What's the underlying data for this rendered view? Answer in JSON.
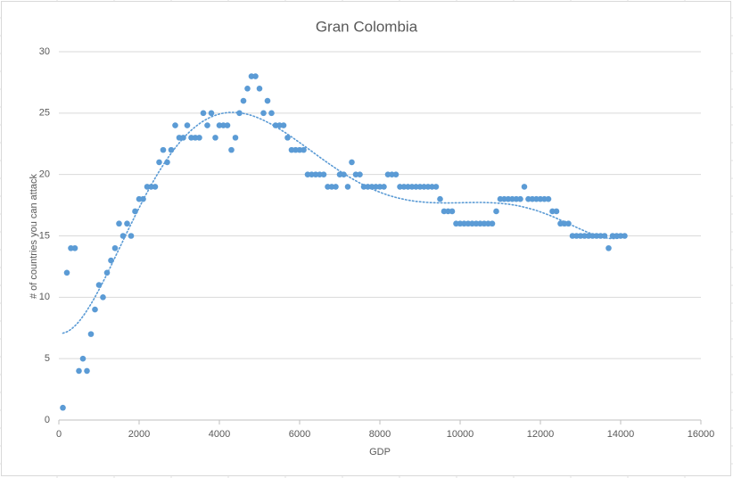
{
  "chart_data": {
    "type": "scatter",
    "title": "Gran Colombia",
    "x_label": "GDP",
    "y_label": "# of countries you can attack",
    "color": "#5b9bd5",
    "grid": true,
    "trendline": {
      "type": "polynomial",
      "order": 6,
      "style": "dotted"
    },
    "xlim": [
      0,
      16000
    ],
    "xticks": [
      0,
      2000,
      4000,
      6000,
      8000,
      10000,
      12000,
      14000,
      16000
    ],
    "ylim": [
      0,
      30
    ],
    "yticks": [
      0,
      5,
      10,
      15,
      20,
      25,
      30
    ],
    "series": [
      {
        "name": "Gran Colombia",
        "color": "#5b9bd5",
        "x": [
          100,
          200,
          300,
          400,
          500,
          600,
          700,
          800,
          900,
          1000,
          1100,
          1200,
          1300,
          1400,
          1500,
          1600,
          1700,
          1800,
          1900,
          2000,
          2100,
          2200,
          2300,
          2400,
          2500,
          2600,
          2700,
          2800,
          2900,
          3000,
          3100,
          3200,
          3300,
          3400,
          3500,
          3600,
          3700,
          3800,
          3900,
          4000,
          4100,
          4200,
          4300,
          4400,
          4500,
          4600,
          4700,
          4800,
          4900,
          5000,
          5100,
          5200,
          5300,
          5400,
          5500,
          5600,
          5700,
          5800,
          5900,
          6000,
          6100,
          6200,
          6300,
          6400,
          6500,
          6600,
          6700,
          6800,
          6900,
          7000,
          7100,
          7200,
          7300,
          7400,
          7500,
          7600,
          7700,
          7800,
          7900,
          8000,
          8100,
          8200,
          8300,
          8400,
          8500,
          8600,
          8700,
          8800,
          8900,
          9000,
          9100,
          9200,
          9300,
          9400,
          9500,
          9600,
          9700,
          9800,
          9900,
          10000,
          10100,
          10200,
          10300,
          10400,
          10500,
          10600,
          10700,
          10800,
          10900,
          11000,
          11100,
          11200,
          11300,
          11400,
          11500,
          11600,
          11700,
          11800,
          11900,
          12000,
          12100,
          12200,
          12300,
          12400,
          12500,
          12600,
          12700,
          12800,
          12900,
          13000,
          13100,
          13200,
          13300,
          13400,
          13500,
          13600,
          13700,
          13800,
          13900,
          14000,
          14100
        ],
        "values": [
          1,
          12,
          14,
          14,
          4,
          5,
          4,
          7,
          9,
          11,
          10,
          12,
          13,
          14,
          16,
          15,
          16,
          15,
          17,
          18,
          18,
          19,
          19,
          19,
          21,
          22,
          21,
          22,
          24,
          23,
          23,
          24,
          23,
          23,
          23,
          25,
          24,
          25,
          23,
          24,
          24,
          24,
          22,
          23,
          25,
          26,
          27,
          28,
          28,
          27,
          25,
          26,
          25,
          24,
          24,
          24,
          23,
          22,
          22,
          22,
          22,
          20,
          20,
          20,
          20,
          20,
          19,
          19,
          19,
          20,
          20,
          19,
          21,
          20,
          20,
          19,
          19,
          19,
          19,
          19,
          19,
          20,
          20,
          20,
          19,
          19,
          19,
          19,
          19,
          19,
          19,
          19,
          19,
          19,
          18,
          17,
          17,
          17,
          16,
          16,
          16,
          16,
          16,
          16,
          16,
          16,
          16,
          16,
          17,
          18,
          18,
          18,
          18,
          18,
          18,
          19,
          18,
          18,
          18,
          18,
          18,
          18,
          17,
          17,
          16,
          16,
          16,
          15,
          15,
          15,
          15,
          15,
          15,
          15,
          15,
          15,
          14,
          15,
          15,
          15,
          15
        ]
      }
    ]
  }
}
